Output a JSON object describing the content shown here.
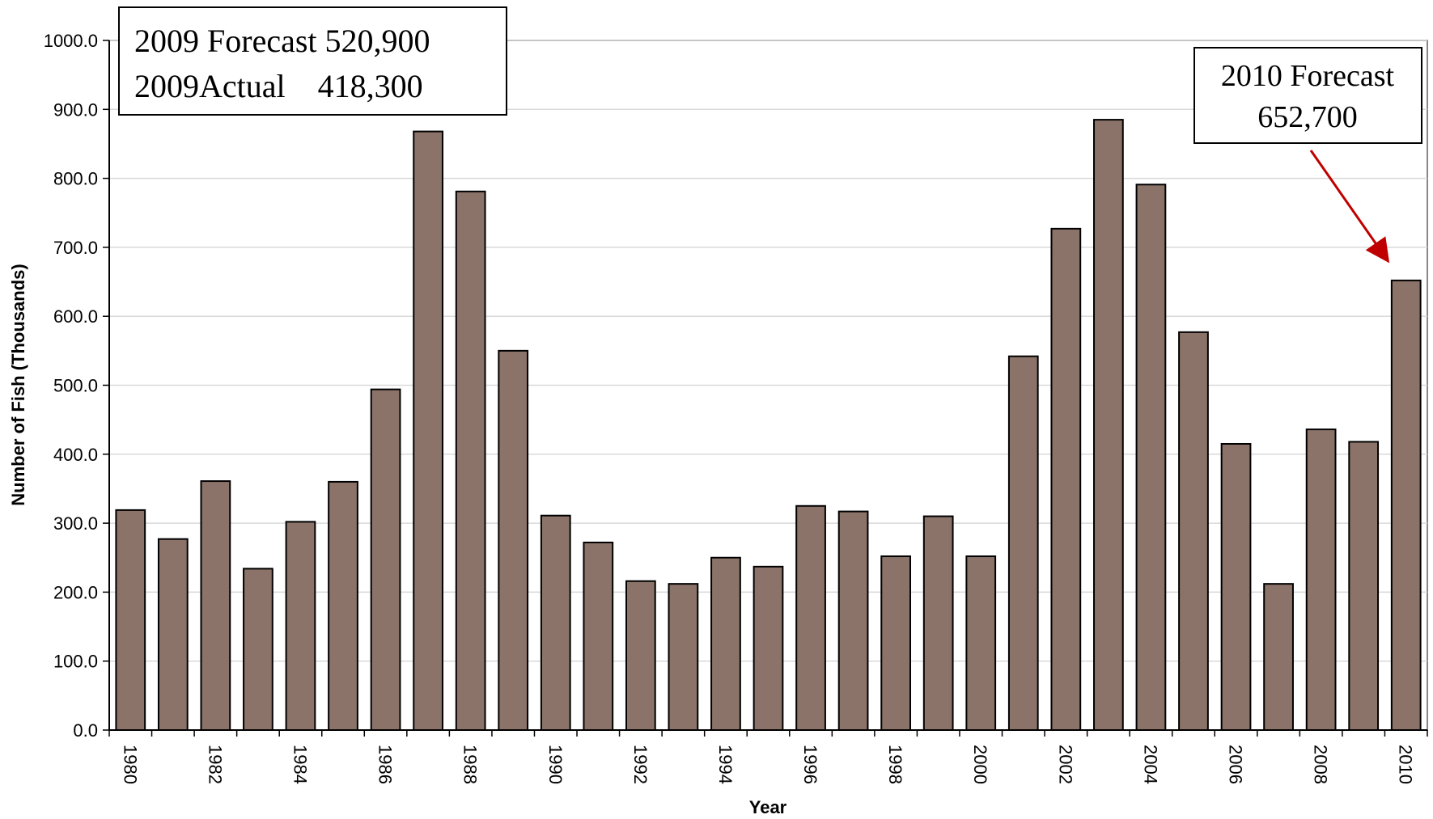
{
  "chart_data": {
    "type": "bar",
    "categories": [
      "1980",
      "1981",
      "1982",
      "1983",
      "1984",
      "1985",
      "1986",
      "1987",
      "1988",
      "1989",
      "1990",
      "1991",
      "1992",
      "1993",
      "1994",
      "1995",
      "1996",
      "1997",
      "1998",
      "1999",
      "2000",
      "2001",
      "2002",
      "2003",
      "2004",
      "2005",
      "2006",
      "2007",
      "2008",
      "2009",
      "2010"
    ],
    "x_tick_labels": [
      "1980",
      "1982",
      "1984",
      "1986",
      "1988",
      "1990",
      "1992",
      "1994",
      "1996",
      "1998",
      "2000",
      "2002",
      "2004",
      "2006",
      "2008",
      "2010"
    ],
    "values": [
      319,
      277,
      361,
      234,
      302,
      360,
      494,
      868,
      781,
      550,
      311,
      272,
      216,
      212,
      250,
      237,
      325,
      317,
      252,
      310,
      252,
      542,
      727,
      885,
      791,
      577,
      415,
      212,
      436,
      418,
      652
    ],
    "xlabel": "Year",
    "ylabel": "Number of Fish (Thousands)",
    "ylim": [
      0,
      1000
    ],
    "y_ticks": [
      "0.0",
      "100.0",
      "200.0",
      "300.0",
      "400.0",
      "500.0",
      "600.0",
      "700.0",
      "800.0",
      "900.0",
      "1000.0"
    ],
    "grid": true,
    "bar_color": "#8b7369",
    "annotations": {
      "box_2009": {
        "line1": "2009 Forecast 520,900",
        "line2": "2009Actual    418,300"
      },
      "box_2010": {
        "line1": "2010 Forecast",
        "line2": "652,700"
      },
      "arrow_color": "#c00000"
    }
  }
}
